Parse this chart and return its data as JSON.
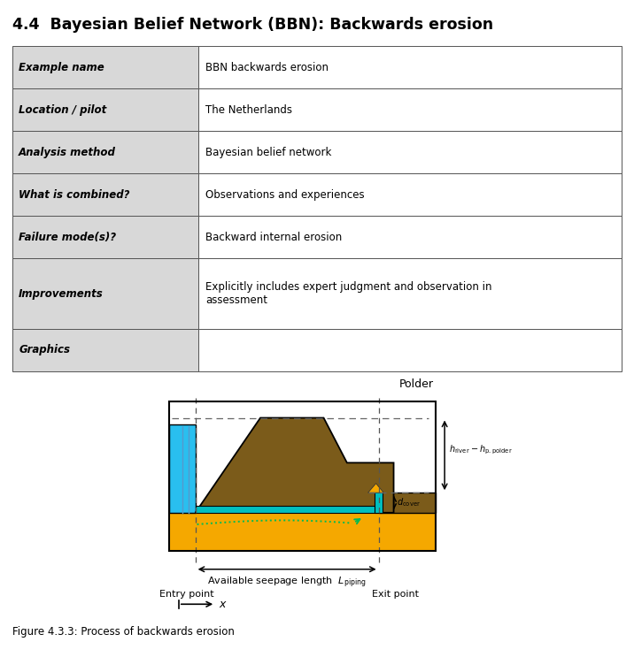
{
  "title": "4.4  Bayesian Belief Network (BBN): Backwards erosion",
  "table_rows": [
    [
      "Example name",
      "BBN backwards erosion"
    ],
    [
      "Location / pilot",
      "The Netherlands"
    ],
    [
      "Analysis method",
      "Bayesian belief network"
    ],
    [
      "What is combined?",
      "Observations and experiences"
    ],
    [
      "Failure mode(s)?",
      "Backward internal erosion"
    ],
    [
      "Improvements",
      "Explicitly includes expert judgment and observation in\nassessment"
    ],
    [
      "Graphics",
      ""
    ]
  ],
  "color_water": "#29BFEF",
  "color_soil_brown": "#7B5B1A",
  "color_sand_yellow": "#F5A800",
  "color_pipe_cyan": "#00BFBF",
  "color_gray_light": "#d8d8d8",
  "color_white": "#ffffff",
  "fig_caption": "Figure 4.3.3: Process of backwards erosion",
  "polder_text": "Polder",
  "entry_point_text": "Entry point",
  "exit_point_text": "Exit point",
  "seepage_label": "Available seepage length  $L_{\\mathrm{piping}}$",
  "x_label": "$x$"
}
